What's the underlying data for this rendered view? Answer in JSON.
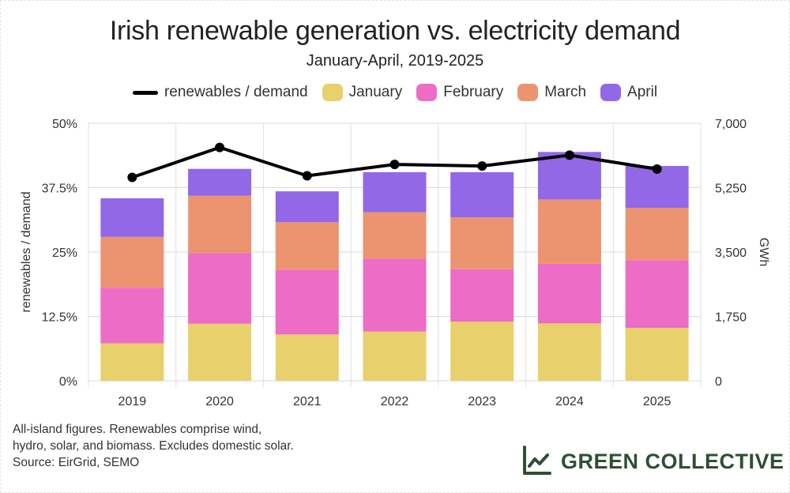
{
  "title": "Irish renewable generation vs. electricity demand",
  "subtitle": "January-April, 2019-2025",
  "legend": {
    "line_label": "renewables / demand",
    "items": [
      {
        "label": "January",
        "color": "#E8D06C"
      },
      {
        "label": "February",
        "color": "#EC6CC6"
      },
      {
        "label": "March",
        "color": "#EC9470"
      },
      {
        "label": "April",
        "color": "#9368E6"
      }
    ]
  },
  "chart_data": {
    "type": "bar",
    "stacked": true,
    "categories": [
      "2019",
      "2020",
      "2021",
      "2022",
      "2023",
      "2024",
      "2025"
    ],
    "series": [
      {
        "name": "January",
        "color": "#E8D06C",
        "values": [
          1020,
          1550,
          1260,
          1340,
          1610,
          1560,
          1440
        ]
      },
      {
        "name": "February",
        "color": "#EC6CC6",
        "values": [
          1510,
          1920,
          1760,
          1980,
          1420,
          1620,
          1840
        ]
      },
      {
        "name": "March",
        "color": "#EC9470",
        "values": [
          1380,
          1560,
          1290,
          1260,
          1410,
          1750,
          1420
        ]
      },
      {
        "name": "April",
        "color": "#9368E6",
        "values": [
          1050,
          730,
          840,
          1090,
          1230,
          1290,
          1140
        ]
      }
    ],
    "line_series": {
      "name": "renewables / demand",
      "color": "#000000",
      "values": [
        39.5,
        45.3,
        39.8,
        42.0,
        41.7,
        43.8,
        41.1
      ]
    },
    "y_left": {
      "label": "renewables / demand",
      "range": [
        0,
        50
      ],
      "ticks": [
        0,
        12.5,
        25,
        37.5,
        50
      ],
      "tick_labels": [
        "0%",
        "12.5%",
        "25%",
        "37.5%",
        "50%"
      ]
    },
    "y_right": {
      "label": "GWh",
      "range": [
        0,
        7000
      ],
      "ticks": [
        0,
        1750,
        3500,
        5250,
        7000
      ],
      "tick_labels": [
        "0",
        "1,750",
        "3,500",
        "5,250",
        "7,000"
      ]
    },
    "grid": true
  },
  "footnote": {
    "line1": "All-island figures. Renewables comprise wind,",
    "line2": "hydro, solar, and biomass. Excludes domestic solar.",
    "line3": "Source: EirGrid, SEMO"
  },
  "brand": {
    "name": "GREEN COLLECTIVE",
    "icon": "line-chart-icon",
    "color": "#2f4f32"
  }
}
